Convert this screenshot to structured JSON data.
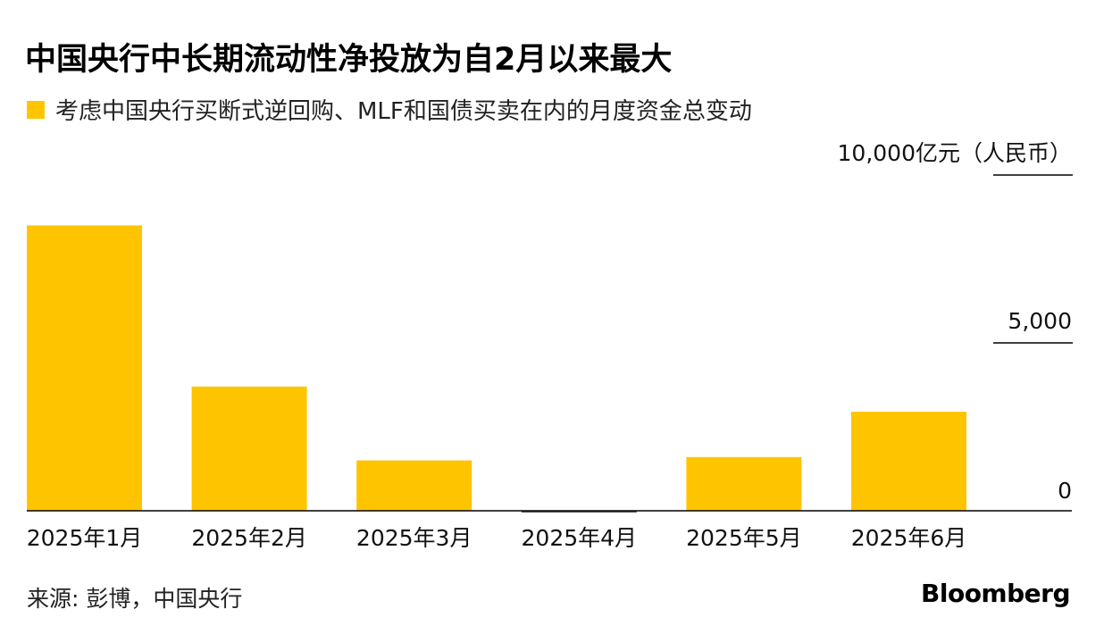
{
  "title": "中国央行中长期流动性净投放为自2月以来最大",
  "legend": {
    "label": "考虑中国央行买断式逆回购、MLF和国债买卖在内的月度资金总变动",
    "color": "#FFC400"
  },
  "source": "来源: 彭博，中国央行",
  "logo": "Bloomberg",
  "chart_data": {
    "type": "bar",
    "categories": [
      "2025年1月",
      "2025年2月",
      "2025年3月",
      "2025年4月",
      "2025年5月",
      "2025年6月"
    ],
    "values": [
      8500,
      3700,
      1500,
      -30,
      1600,
      2950
    ],
    "y_unit_label": "10,000亿元（人民币）",
    "y_ticks": [
      0,
      5000,
      10000
    ],
    "y_tick_labels": [
      "0",
      "5,000",
      "10,000"
    ],
    "ylim": [
      0,
      10000
    ],
    "bar_color": "#FFC400",
    "grid": false,
    "legend_position": "top-left"
  }
}
